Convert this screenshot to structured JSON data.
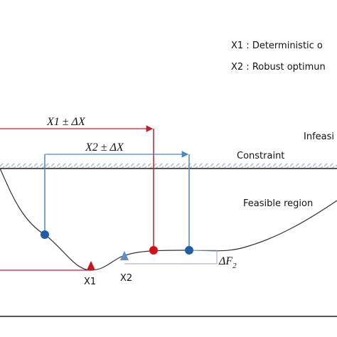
{
  "legend": {
    "x1": "X1 : Deterministic o",
    "x2": "X2 : Robust optimun"
  },
  "ranges": {
    "x1": "X1 ± ΔX",
    "x2": "X2 ± ΔX"
  },
  "labels": {
    "infeasible": "Infeasi",
    "constraint": "Constraint",
    "feasible": "Feasible region",
    "delta_f": "ΔF",
    "delta_f_sub": "2",
    "point_x1": "X1",
    "point_x2": "X2"
  }
}
